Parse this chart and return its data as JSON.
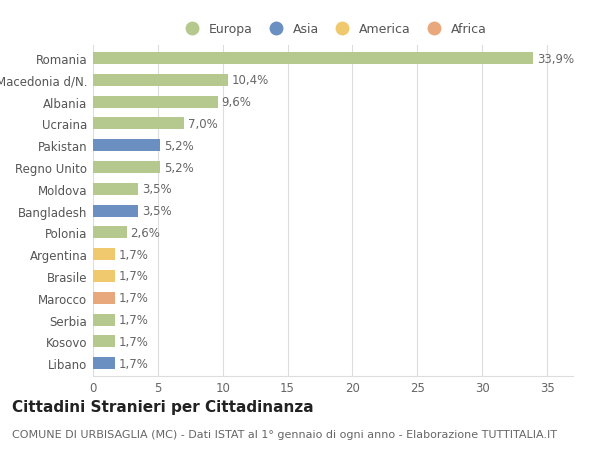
{
  "categories": [
    "Romania",
    "Macedonia d/N.",
    "Albania",
    "Ucraina",
    "Pakistan",
    "Regno Unito",
    "Moldova",
    "Bangladesh",
    "Polonia",
    "Argentina",
    "Brasile",
    "Marocco",
    "Serbia",
    "Kosovo",
    "Libano"
  ],
  "values": [
    33.9,
    10.4,
    9.6,
    7.0,
    5.2,
    5.2,
    3.5,
    3.5,
    2.6,
    1.7,
    1.7,
    1.7,
    1.7,
    1.7,
    1.7
  ],
  "labels": [
    "33,9%",
    "10,4%",
    "9,6%",
    "7,0%",
    "5,2%",
    "5,2%",
    "3,5%",
    "3,5%",
    "2,6%",
    "1,7%",
    "1,7%",
    "1,7%",
    "1,7%",
    "1,7%",
    "1,7%"
  ],
  "continents": [
    "Europa",
    "Europa",
    "Europa",
    "Europa",
    "Asia",
    "Europa",
    "Europa",
    "Asia",
    "Europa",
    "America",
    "America",
    "Africa",
    "Europa",
    "Europa",
    "Asia"
  ],
  "continent_colors": {
    "Europa": "#b5c98e",
    "Asia": "#6a8fc0",
    "America": "#f0c96e",
    "Africa": "#e8a87c"
  },
  "legend_order": [
    "Europa",
    "Asia",
    "America",
    "Africa"
  ],
  "title": "Cittadini Stranieri per Cittadinanza",
  "subtitle": "COMUNE DI URBISAGLIA (MC) - Dati ISTAT al 1° gennaio di ogni anno - Elaborazione TUTTITALIA.IT",
  "xlim": [
    0,
    37
  ],
  "xticks": [
    0,
    5,
    10,
    15,
    20,
    25,
    30,
    35
  ],
  "background_color": "#ffffff",
  "grid_color": "#dddddd",
  "bar_height": 0.55,
  "label_fontsize": 8.5,
  "tick_fontsize": 8.5,
  "title_fontsize": 11,
  "subtitle_fontsize": 8
}
